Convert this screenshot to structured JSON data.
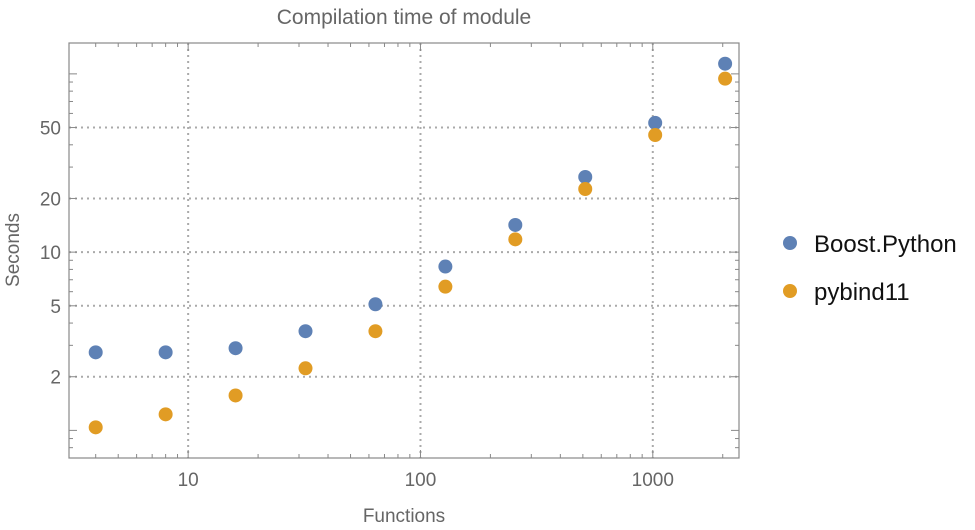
{
  "chart_data": {
    "type": "scatter",
    "title": "Compilation time of module",
    "xlabel": "Functions",
    "ylabel": "Seconds",
    "xscale": "log",
    "yscale": "log",
    "xlim": [
      3.07,
      2350
    ],
    "ylim": [
      0.7,
      149
    ],
    "grid": true,
    "legend_position": "right",
    "x_ticks": [
      10,
      100,
      1000
    ],
    "x_tick_labels": [
      "10",
      "100",
      "1000"
    ],
    "y_ticks": [
      2,
      5,
      10,
      20,
      50
    ],
    "y_tick_labels": [
      "2",
      "5",
      "10",
      "20",
      "50"
    ],
    "x": [
      4,
      8,
      16,
      32,
      64,
      128,
      256,
      512,
      1024,
      2048
    ],
    "series": [
      {
        "name": "Boost.Python",
        "color": "#5e81b5",
        "values": [
          2.74,
          2.74,
          2.89,
          3.6,
          5.1,
          8.3,
          14.2,
          26.4,
          53.1,
          114
        ]
      },
      {
        "name": "pybind11",
        "color": "#e19c24",
        "values": [
          1.04,
          1.23,
          1.57,
          2.23,
          3.6,
          6.4,
          11.8,
          22.6,
          45.4,
          94
        ]
      }
    ]
  }
}
